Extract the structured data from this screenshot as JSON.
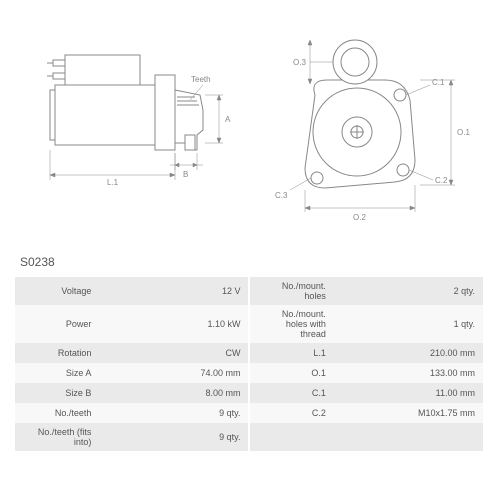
{
  "part_number": "S0238",
  "diagram": {
    "side_view": {
      "labels": {
        "L1": "L.1",
        "B": "B",
        "A": "A",
        "Teeth": "Teeth"
      },
      "stroke": "#888888",
      "fill": "#ffffff"
    },
    "front_view": {
      "labels": {
        "O1": "O.1",
        "O2": "O.2",
        "O3": "O.3",
        "C1": "C.1",
        "C2": "C.2",
        "C3": "C.3"
      },
      "stroke": "#888888",
      "fill": "#ffffff"
    }
  },
  "specs": {
    "left": [
      {
        "label": "Voltage",
        "value": "12 V"
      },
      {
        "label": "Power",
        "value": "1.10 kW"
      },
      {
        "label": "Rotation",
        "value": "CW"
      },
      {
        "label": "Size A",
        "value": "74.00 mm"
      },
      {
        "label": "Size B",
        "value": "8.00 mm"
      },
      {
        "label": "No./teeth",
        "value": "9 qty."
      },
      {
        "label": "No./teeth (fits into)",
        "value": "9 qty."
      }
    ],
    "right": [
      {
        "label": "No./mount. holes",
        "value": "2 qty."
      },
      {
        "label": "No./mount. holes with thread",
        "value": "1 qty."
      },
      {
        "label": "L.1",
        "value": "210.00 mm"
      },
      {
        "label": "O.1",
        "value": "133.00 mm"
      },
      {
        "label": "C.1",
        "value": "11.00 mm"
      },
      {
        "label": "C.2",
        "value": "M10x1.75 mm"
      },
      {
        "label": "",
        "value": ""
      }
    ]
  },
  "colors": {
    "row_odd": "#eaeaea",
    "row_even": "#f8f8f8",
    "text": "#555555",
    "stroke": "#888888"
  }
}
